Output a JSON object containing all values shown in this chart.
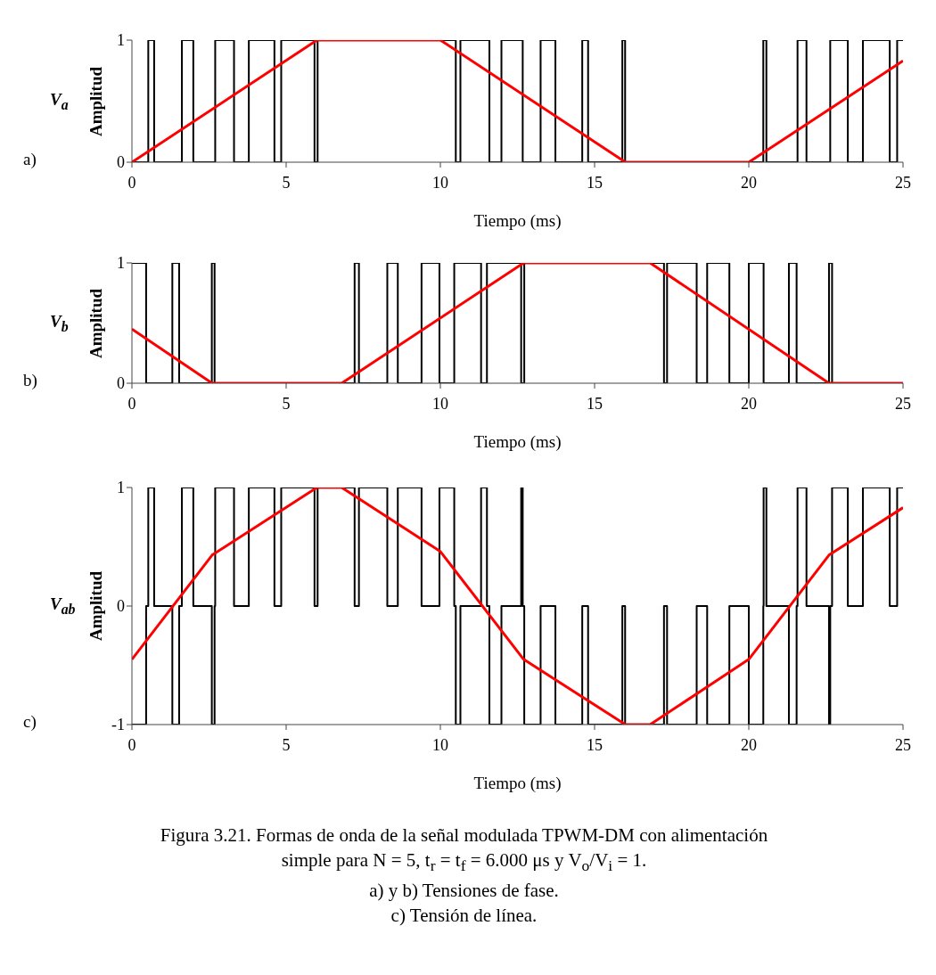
{
  "chart_data": [
    {
      "type": "step",
      "xlabel": "Tiempo (ms)",
      "ylabel": "Amplitud",
      "xlim": [
        0,
        25
      ],
      "xticks": [
        0,
        5,
        10,
        15,
        20,
        25
      ],
      "ylim": [
        0,
        1
      ],
      "yticks": [
        0,
        1
      ],
      "annotations": [
        "V$_{a}$",
        "a)"
      ],
      "series": [
        {
          "type": "step",
          "color": "#000000",
          "x": [
            0,
            0.53,
            0.72,
            1.62,
            1.99,
            2.7,
            3.31,
            3.79,
            4.62,
            4.84,
            5.92,
            6.02,
            10.5,
            10.65,
            11.59,
            11.98,
            12.67,
            13.25,
            13.73,
            14.6,
            14.79,
            15.9,
            15.99,
            20.47,
            20.57,
            21.58,
            21.87,
            22.64,
            23.21,
            23.7,
            24.57,
            24.81,
            25
          ],
          "values": [
            0,
            1,
            0,
            1,
            0,
            1,
            0,
            1,
            0,
            1,
            0,
            1,
            0,
            1,
            0,
            1,
            0,
            1,
            0,
            1,
            0,
            1,
            0,
            1,
            0,
            1,
            0,
            1,
            0,
            1,
            0,
            1,
            1
          ]
        },
        {
          "type": "line",
          "color": "#ff0000",
          "x": [
            0,
            6,
            10,
            16,
            20,
            25
          ],
          "values": [
            0,
            1,
            1,
            0,
            0,
            0.83
          ]
        }
      ]
    },
    {
      "type": "step",
      "xlabel": "Tiempo (ms)",
      "ylabel": "Amplitud",
      "xlim": [
        0,
        25
      ],
      "xticks": [
        0,
        5,
        10,
        15,
        20,
        25
      ],
      "ylim": [
        0,
        1
      ],
      "yticks": [
        0,
        1
      ],
      "annotations": [
        "V$_{b}$",
        "b)"
      ],
      "series": [
        {
          "type": "step",
          "color": "#000000",
          "x": [
            0,
            0.46,
            1.31,
            1.53,
            2.59,
            2.68,
            7.22,
            7.36,
            8.28,
            8.62,
            9.39,
            9.97,
            10.45,
            11.32,
            11.51,
            12.62,
            12.72,
            17.25,
            17.35,
            18.31,
            18.65,
            19.37,
            20.0,
            20.48,
            21.3,
            21.55,
            22.6,
            22.7,
            25
          ],
          "values": [
            1,
            0,
            1,
            0,
            1,
            0,
            1,
            0,
            1,
            0,
            1,
            0,
            1,
            0,
            1,
            0,
            1,
            0,
            1,
            0,
            1,
            0,
            1,
            0,
            1,
            0,
            1,
            0,
            0
          ]
        },
        {
          "type": "line",
          "color": "#ff0000",
          "x": [
            0,
            2.6,
            6.8,
            12.7,
            16.8,
            22.6,
            25
          ],
          "values": [
            0.45,
            0,
            0,
            1,
            1,
            0,
            0
          ]
        }
      ]
    },
    {
      "type": "step",
      "xlabel": "Tiempo (ms)",
      "ylabel": "Amplitud",
      "xlim": [
        0,
        25
      ],
      "xticks": [
        0,
        5,
        10,
        15,
        20,
        25
      ],
      "ylim": [
        -1,
        1
      ],
      "yticks": [
        -1,
        0,
        1
      ],
      "annotations": [
        "V$_{ab}$",
        "c)",
        "Figura 3.21. Formas de onda de la señal modulada TPWM-DM con alimentación",
        "simple para N = 5, t$_{r}$ = t$_{f}$ = 6.000 μs y V$_{o}$/V$_{i}$ = 1.",
        "a) y b) Tensiones de fase.",
        "c) Tensión de línea."
      ],
      "series": [
        {
          "type": "step",
          "color": "#000000",
          "x": [
            0,
            0.46,
            0.53,
            0.72,
            1.31,
            1.53,
            1.62,
            1.99,
            2.59,
            2.68,
            2.7,
            3.31,
            3.79,
            4.62,
            4.84,
            5.92,
            6.02,
            7.22,
            7.36,
            8.28,
            8.62,
            9.39,
            9.97,
            10.45,
            10.5,
            10.65,
            11.32,
            11.51,
            11.59,
            11.98,
            12.62,
            12.67,
            12.72,
            13.25,
            13.73,
            14.6,
            14.79,
            15.9,
            15.99,
            17.25,
            17.35,
            18.31,
            18.65,
            19.37,
            20.0,
            20.47,
            20.48,
            20.57,
            21.3,
            21.55,
            21.58,
            21.87,
            22.6,
            22.64,
            22.7,
            23.21,
            23.7,
            24.57,
            24.81,
            25
          ],
          "values": [
            -1,
            0,
            1,
            0,
            -1,
            0,
            1,
            0,
            -1,
            0,
            1,
            0,
            1,
            0,
            1,
            0,
            1,
            0,
            1,
            0,
            1,
            0,
            1,
            0,
            -1,
            0,
            1,
            0,
            -1,
            0,
            1,
            0,
            -1,
            0,
            -1,
            0,
            -1,
            0,
            -1,
            0,
            -1,
            0,
            -1,
            0,
            -1,
            0,
            1,
            0,
            -1,
            0,
            1,
            0,
            -1,
            0,
            1,
            0,
            1,
            0,
            1,
            1
          ]
        },
        {
          "type": "line",
          "color": "#ff0000",
          "x": [
            0,
            2.6,
            6,
            6.8,
            10,
            12.7,
            16,
            16.8,
            20,
            22.6,
            25
          ],
          "values": [
            -0.45,
            0.43,
            1,
            1,
            0.46,
            -0.45,
            -1,
            -1,
            -0.45,
            0.43,
            0.83
          ]
        }
      ]
    }
  ]
}
